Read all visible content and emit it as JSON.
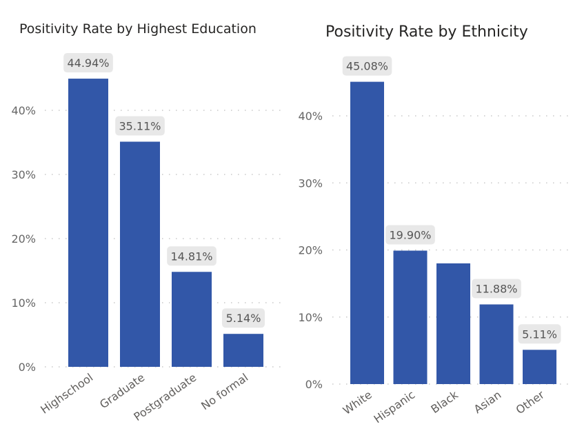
{
  "chart_data": [
    {
      "type": "bar",
      "title": "Positivity Rate by Highest Education",
      "categories": [
        "Highschool",
        "Graduate",
        "Postgraduate",
        "No formal"
      ],
      "values": [
        44.94,
        35.11,
        14.81,
        5.14
      ],
      "data_labels": [
        "44.94%",
        "35.11%",
        "14.81%",
        "5.14%"
      ],
      "yticks": [
        "0%",
        "10%",
        "20%",
        "30%",
        "40%"
      ],
      "ylim": [
        0,
        45
      ],
      "grid": "dotted horizontal",
      "bar_color": "#3257a8",
      "label_bg": "#e8e8e8"
    },
    {
      "type": "bar",
      "title": "Positivity Rate by Ethnicity",
      "categories": [
        "White",
        "Hispanic",
        "Black",
        "Asian",
        "Other"
      ],
      "values": [
        45.08,
        19.9,
        18.0,
        11.88,
        5.11
      ],
      "data_labels": [
        "45.08%",
        "19.90%",
        "",
        "11.88%",
        "5.11%"
      ],
      "yticks": [
        "0%",
        "10%",
        "20%",
        "30%",
        "40%"
      ],
      "ylim": [
        0,
        45
      ],
      "grid": "dotted horizontal",
      "bar_color": "#3257a8",
      "label_bg": "#e8e8e8"
    }
  ]
}
